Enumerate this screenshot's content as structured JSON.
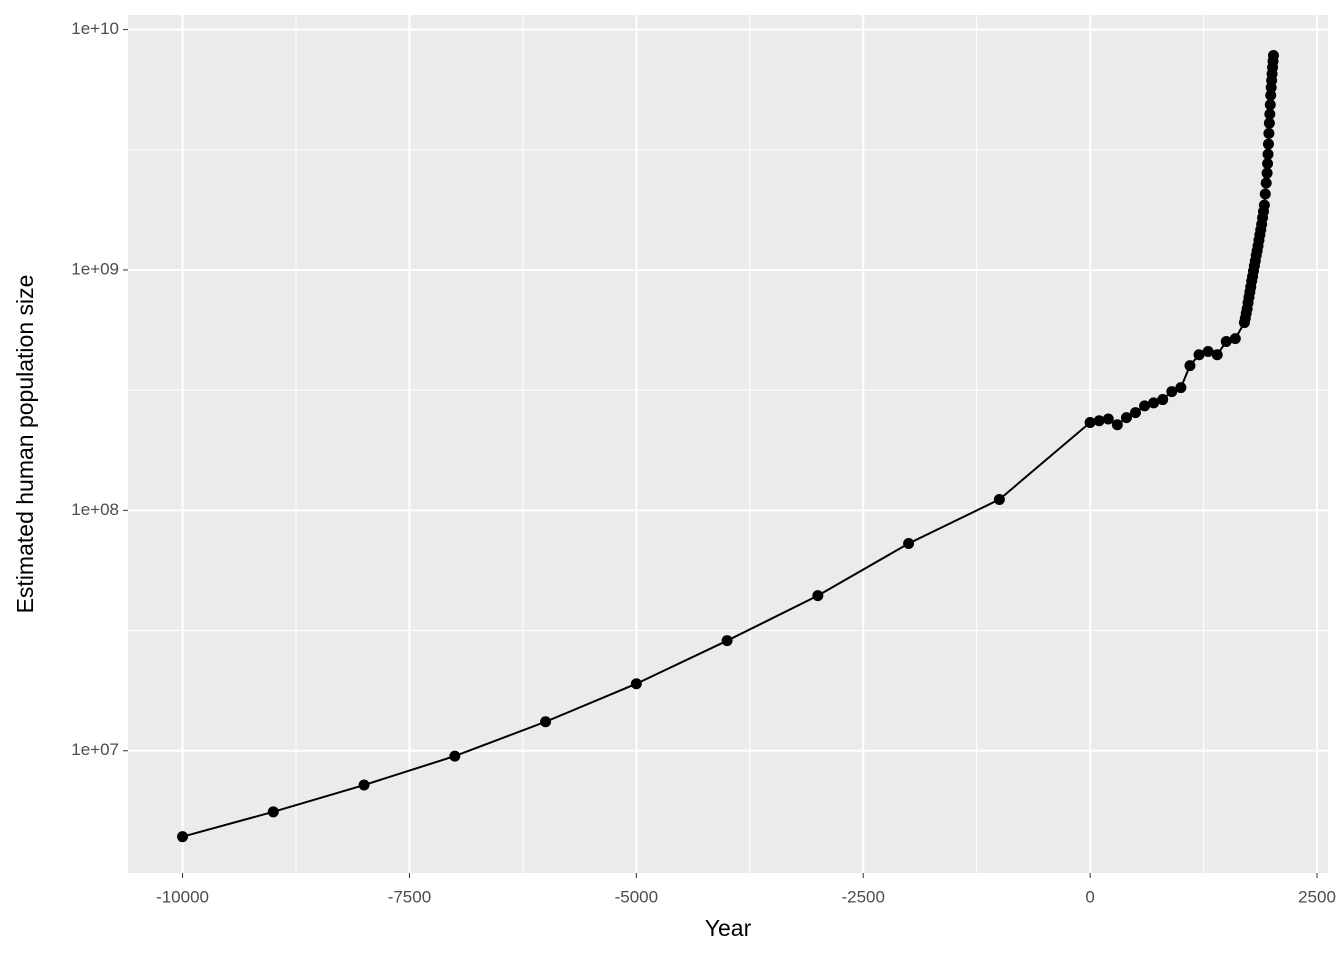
{
  "chart_data": {
    "type": "line",
    "x_label": "Year",
    "y_label": "Estimated human population size",
    "x": [
      -10000,
      -9000,
      -8000,
      -7000,
      -6000,
      -5000,
      -4000,
      -3000,
      -2000,
      -1000,
      0,
      100,
      200,
      300,
      400,
      500,
      600,
      700,
      800,
      900,
      1000,
      1100,
      1200,
      1300,
      1400,
      1500,
      1600,
      1700,
      1710,
      1720,
      1730,
      1740,
      1750,
      1760,
      1770,
      1780,
      1790,
      1800,
      1810,
      1820,
      1830,
      1840,
      1850,
      1860,
      1870,
      1880,
      1890,
      1900,
      1910,
      1920,
      1930,
      1940,
      1950,
      1955,
      1960,
      1965,
      1970,
      1975,
      1980,
      1985,
      1990,
      1995,
      2000,
      2005,
      2010,
      2015,
      2020
    ],
    "values": [
      4390000,
      5570000,
      7200000,
      9500000,
      13200000,
      19000000,
      28700000,
      44200000,
      72800000,
      111000000,
      232000000,
      236000000,
      240000000,
      227000000,
      243000000,
      255000000,
      272000000,
      280000000,
      289000000,
      312000000,
      324000000,
      400000000,
      444000000,
      458000000,
      444000000,
      504000000,
      518000000,
      604000000,
      630000000,
      660000000,
      690000000,
      730000000,
      770000000,
      810000000,
      850000000,
      900000000,
      940000000,
      990000000,
      1040000000,
      1090000000,
      1150000000,
      1200000000,
      1260000000,
      1330000000,
      1400000000,
      1470000000,
      1550000000,
      1650000000,
      1750000000,
      1860000000,
      2070000000,
      2300000000,
      2530000000,
      2770000000,
      3030000000,
      3340000000,
      3700000000,
      4080000000,
      4450000000,
      4870000000,
      5330000000,
      5740000000,
      6150000000,
      6540000000,
      6960000000,
      7380000000,
      7800000000
    ],
    "color": "#000000",
    "log_y": true,
    "grid": true,
    "xlim": [
      -10601,
      2621
    ],
    "xticks": [
      -10000,
      -7500,
      -5000,
      -2500,
      0,
      2500
    ],
    "ylim": [
      3100000,
      11500000000
    ],
    "yticks": [
      {
        "value": 10000000,
        "label": "1e+07"
      },
      {
        "value": 100000000,
        "label": "1e+08"
      },
      {
        "value": 1000000000,
        "label": "1e+09"
      },
      {
        "value": 10000000000,
        "label": "1e+10"
      }
    ]
  }
}
